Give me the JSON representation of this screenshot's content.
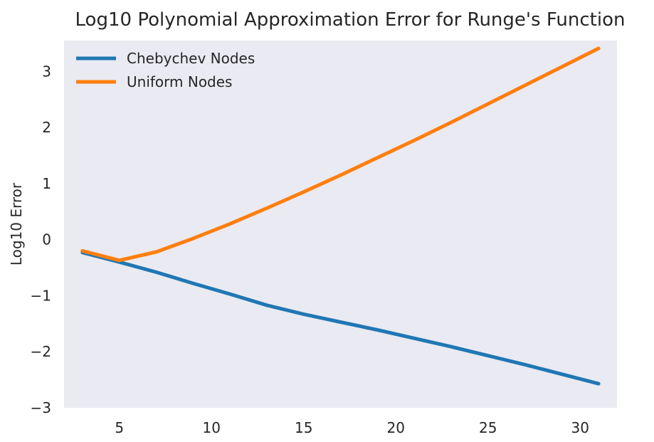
{
  "chart_data": {
    "type": "line",
    "title": "Log10 Polynomial Approximation Error for Runge's Function",
    "xlabel": "",
    "ylabel": "Log10 Error",
    "xlim": [
      2,
      32
    ],
    "ylim": [
      -3,
      3.55
    ],
    "x_ticks": [
      5,
      10,
      15,
      20,
      25,
      30
    ],
    "y_ticks": [
      -3,
      -2,
      -1,
      0,
      1,
      2,
      3
    ],
    "x_tick_labels": [
      "5",
      "10",
      "15",
      "20",
      "25",
      "30"
    ],
    "y_tick_labels": [
      "−3",
      "−2",
      "−1",
      "0",
      "1",
      "2",
      "3"
    ],
    "grid": false,
    "background": "#eaeaf2",
    "legend_position": "top-left",
    "x": [
      3,
      5,
      7,
      9,
      11,
      13,
      15,
      17,
      19,
      21,
      23,
      25,
      27,
      29,
      31
    ],
    "series": [
      {
        "name": "Chebychev Nodes",
        "color": "#1f77b4",
        "values": [
          -0.23,
          -0.4,
          -0.58,
          -0.78,
          -0.97,
          -1.17,
          -1.33,
          -1.47,
          -1.61,
          -1.76,
          -1.91,
          -2.07,
          -2.23,
          -2.4,
          -2.57
        ]
      },
      {
        "name": "Uniform Nodes",
        "color": "#ff7f0e",
        "values": [
          -0.2,
          -0.37,
          -0.22,
          0.02,
          0.28,
          0.56,
          0.85,
          1.15,
          1.46,
          1.77,
          2.09,
          2.42,
          2.75,
          3.08,
          3.41
        ]
      }
    ]
  }
}
